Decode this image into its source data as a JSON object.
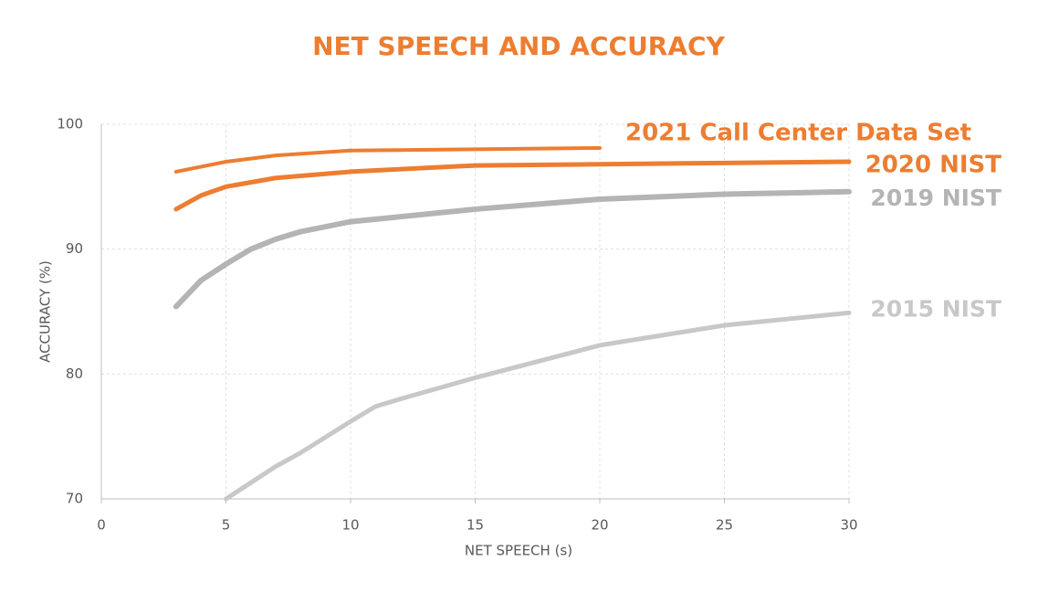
{
  "chart_data": {
    "type": "line",
    "title": "NET SPEECH AND ACCURACY",
    "x_label": "NET SPEECH (s)",
    "y_label": "ACCURACY (%)",
    "xlim": [
      0,
      30
    ],
    "xticks": [
      0,
      5,
      10,
      15,
      20,
      25,
      30
    ],
    "ylim": [
      70,
      100
    ],
    "yticks": [
      70,
      80,
      90,
      100
    ],
    "grid": true,
    "series": [
      {
        "name": "2021 Call Center Data Set",
        "color": "#ed7d31",
        "x": [
          3,
          5,
          7,
          10,
          15,
          20
        ],
        "values": [
          96.2,
          97.0,
          97.5,
          97.9,
          98.0,
          98.1
        ]
      },
      {
        "name": "2020 NIST",
        "color": "#ed7d31",
        "x": [
          3,
          4,
          5,
          7,
          10,
          15,
          20,
          25,
          30
        ],
        "values": [
          93.2,
          94.3,
          95.0,
          95.7,
          96.2,
          96.7,
          96.8,
          96.9,
          97.0
        ]
      },
      {
        "name": "2019 NIST",
        "color": "#b4b4b4",
        "x": [
          3,
          4,
          5,
          6,
          7,
          8,
          10,
          15,
          20,
          25,
          30
        ],
        "values": [
          85.4,
          87.5,
          88.8,
          90.0,
          90.8,
          91.4,
          92.2,
          93.2,
          94.0,
          94.4,
          94.6
        ]
      },
      {
        "name": "2015 NIST",
        "color": "#c8c8c8",
        "x": [
          5,
          6,
          7,
          8,
          10,
          11,
          12,
          15,
          20,
          25,
          30
        ],
        "values": [
          70.0,
          71.3,
          72.6,
          73.7,
          76.2,
          77.4,
          78.0,
          79.7,
          82.3,
          83.9,
          84.9
        ]
      }
    ]
  }
}
